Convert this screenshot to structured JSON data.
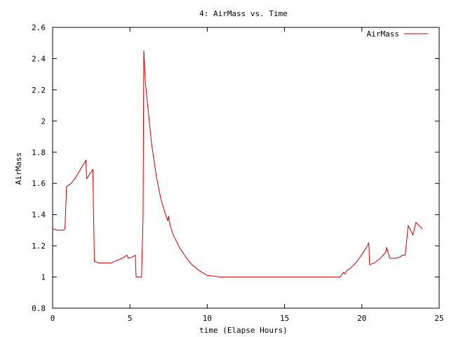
{
  "chart_data": {
    "type": "line",
    "title": "4: AirMass vs. Time",
    "xlabel": "time (Elapse Hours)",
    "ylabel": "AirMass",
    "xlim": [
      0,
      25
    ],
    "ylim": [
      0.8,
      2.6
    ],
    "xticks": [
      0,
      5,
      10,
      15,
      20,
      25
    ],
    "yticks": [
      0.8,
      1,
      1.2,
      1.4,
      1.6,
      1.8,
      2,
      2.2,
      2.4,
      2.6
    ],
    "xtick_labels": [
      "0",
      "5",
      "10",
      "15",
      "20",
      "25"
    ],
    "ytick_labels": [
      "0.8",
      "1",
      "1.2",
      "1.4",
      "1.6",
      "1.8",
      "2",
      "2.2",
      "2.4",
      "2.6"
    ],
    "grid": false,
    "legend_position": "top-right",
    "series": [
      {
        "name": "AirMass",
        "color": "#cc0000",
        "x": [
          0,
          0.3,
          0.7,
          0.8,
          0.9,
          1.2,
          1.5,
          1.8,
          2.1,
          2.15,
          2.2,
          2.4,
          2.6,
          2.65,
          2.7,
          3.0,
          3.4,
          3.8,
          4.0,
          4.5,
          4.8,
          4.9,
          5.2,
          5.35,
          5.4,
          5.7,
          5.75,
          5.85,
          5.9,
          6.0,
          6.2,
          6.4,
          6.7,
          7.0,
          7.3,
          7.45,
          7.5,
          7.6,
          7.8,
          8.2,
          8.6,
          9.0,
          9.5,
          10.0,
          10.5,
          10.8,
          11.0,
          12.0,
          14.0,
          16.0,
          18.0,
          18.6,
          18.8,
          18.9,
          19.0,
          19.3,
          19.6,
          19.9,
          20.3,
          20.45,
          20.5,
          20.8,
          21.2,
          21.55,
          21.6,
          21.8,
          22.2,
          22.5,
          22.6,
          22.8,
          23.0,
          23.2,
          23.3,
          23.5,
          23.7,
          23.9
        ],
        "y": [
          1.31,
          1.3,
          1.3,
          1.31,
          1.58,
          1.6,
          1.64,
          1.69,
          1.74,
          1.75,
          1.63,
          1.66,
          1.69,
          1.4,
          1.1,
          1.09,
          1.09,
          1.09,
          1.1,
          1.12,
          1.14,
          1.12,
          1.13,
          1.14,
          1.0,
          1.0,
          1.0,
          1.38,
          2.45,
          2.25,
          2.05,
          1.85,
          1.65,
          1.5,
          1.4,
          1.36,
          1.39,
          1.33,
          1.27,
          1.19,
          1.13,
          1.08,
          1.04,
          1.01,
          1.005,
          1.0,
          1.0,
          1.0,
          1.0,
          1.0,
          1.0,
          1.0,
          1.03,
          1.02,
          1.04,
          1.06,
          1.09,
          1.13,
          1.19,
          1.22,
          1.08,
          1.09,
          1.12,
          1.16,
          1.19,
          1.12,
          1.12,
          1.13,
          1.14,
          1.14,
          1.33,
          1.29,
          1.27,
          1.35,
          1.33,
          1.31
        ]
      }
    ]
  }
}
